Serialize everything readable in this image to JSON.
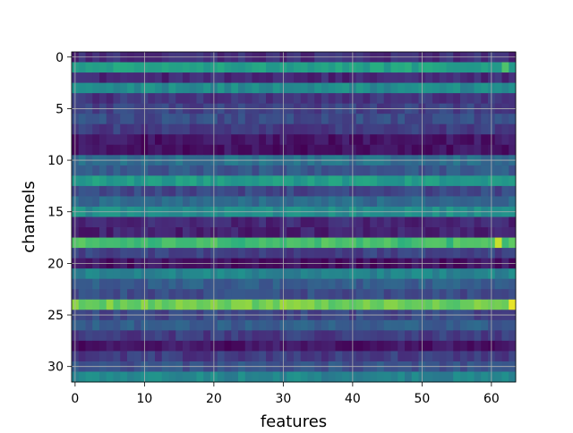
{
  "chart_data": {
    "type": "heatmap",
    "title": "",
    "xlabel": "features",
    "ylabel": "channels",
    "x_range": [
      -0.5,
      63.5
    ],
    "y_range": [
      -0.5,
      31.5
    ],
    "y_inverted": true,
    "n_cols": 64,
    "n_rows": 32,
    "x_ticks": [
      0,
      10,
      20,
      30,
      40,
      50,
      60
    ],
    "x_tick_labels": [
      "0",
      "10",
      "20",
      "30",
      "40",
      "50",
      "60"
    ],
    "y_ticks": [
      0,
      5,
      10,
      15,
      20,
      25,
      30
    ],
    "y_tick_labels": [
      "0",
      "5",
      "10",
      "15",
      "20",
      "25",
      "30"
    ],
    "grid": true,
    "colormap": "viridis",
    "value_range": [
      0,
      1
    ],
    "row_base_values": [
      0.14,
      0.58,
      0.12,
      0.48,
      0.16,
      0.2,
      0.24,
      0.18,
      0.06,
      0.05,
      0.38,
      0.28,
      0.55,
      0.22,
      0.35,
      0.5,
      0.12,
      0.1,
      0.7,
      0.2,
      0.05,
      0.45,
      0.3,
      0.24,
      0.78,
      0.22,
      0.3,
      0.18,
      0.06,
      0.18,
      0.26,
      0.46
    ],
    "highlights": [
      {
        "row": 18,
        "col": 61,
        "value": 0.92
      },
      {
        "row": 24,
        "col": 63,
        "value": 0.97
      },
      {
        "row": 24,
        "col": 30,
        "value": 0.86
      },
      {
        "row": 1,
        "col": 62,
        "value": 0.72
      }
    ]
  }
}
